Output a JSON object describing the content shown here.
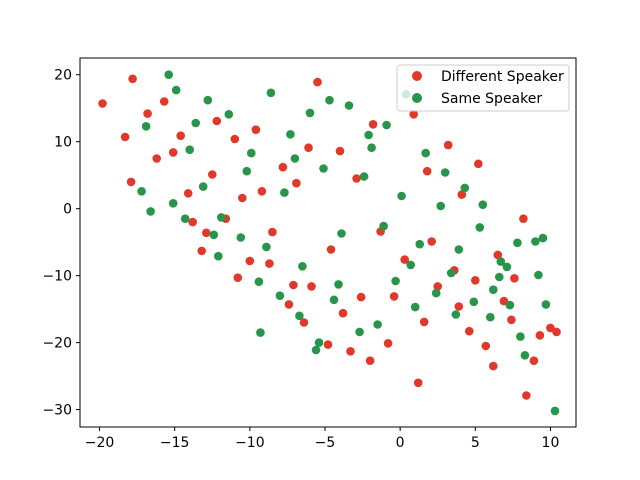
{
  "chart_data": {
    "type": "scatter",
    "title": "",
    "xlabel": "",
    "ylabel": "",
    "xlim": [
      -21.3,
      11.7
    ],
    "ylim": [
      -32.6,
      22.5
    ],
    "x_ticks": [
      -20,
      -15,
      -10,
      -5,
      0,
      5,
      10
    ],
    "y_ticks": [
      -30,
      -20,
      -10,
      0,
      10,
      20
    ],
    "x_tick_labels": [
      "−20",
      "−15",
      "−10",
      "−5",
      "0",
      "5",
      "10"
    ],
    "y_tick_labels": [
      "−30",
      "−20",
      "−10",
      "0",
      "10",
      "20"
    ],
    "legend_position": "top-right",
    "colors": {
      "Different Speaker": "#e0392b",
      "Same Speaker": "#27964a"
    },
    "series": [
      {
        "name": "Different Speaker",
        "points": [
          [
            -19.8,
            15.7
          ],
          [
            -17.8,
            19.4
          ],
          [
            -18.3,
            10.7
          ],
          [
            -17.9,
            4.0
          ],
          [
            -16.8,
            14.2
          ],
          [
            -15.7,
            16.0
          ],
          [
            -16.2,
            7.5
          ],
          [
            -15.1,
            8.4
          ],
          [
            -14.1,
            2.3
          ],
          [
            -13.8,
            -2.0
          ],
          [
            -13.2,
            -6.3
          ],
          [
            -12.5,
            5.1
          ],
          [
            -11.6,
            -1.5
          ],
          [
            -10.8,
            -10.3
          ],
          [
            -10.0,
            -7.8
          ],
          [
            -9.2,
            2.6
          ],
          [
            -8.5,
            -3.5
          ],
          [
            -7.8,
            6.2
          ],
          [
            -7.1,
            -11.4
          ],
          [
            -6.4,
            -17.0
          ],
          [
            -6.9,
            3.8
          ],
          [
            -5.5,
            18.9
          ],
          [
            -4.8,
            -20.3
          ],
          [
            -4.0,
            8.6
          ],
          [
            -3.3,
            -21.3
          ],
          [
            -2.6,
            -13.2
          ],
          [
            -2.0,
            -22.7
          ],
          [
            -1.3,
            -3.4
          ],
          [
            -0.8,
            -20.1
          ],
          [
            0.3,
            -7.6
          ],
          [
            1.2,
            -26.0
          ],
          [
            1.8,
            5.6
          ],
          [
            2.5,
            -11.6
          ],
          [
            3.2,
            9.5
          ],
          [
            3.9,
            -14.6
          ],
          [
            4.6,
            -18.3
          ],
          [
            5.2,
            6.7
          ],
          [
            5.7,
            -20.5
          ],
          [
            6.2,
            -23.5
          ],
          [
            6.9,
            -13.8
          ],
          [
            7.6,
            -10.4
          ],
          [
            8.2,
            -1.5
          ],
          [
            8.4,
            -27.9
          ],
          [
            8.9,
            -22.7
          ],
          [
            9.3,
            -18.9
          ],
          [
            10.0,
            -17.8
          ],
          [
            10.4,
            -18.4
          ],
          [
            -12.2,
            13.1
          ],
          [
            -11.0,
            10.4
          ],
          [
            -9.6,
            11.8
          ],
          [
            -8.7,
            -8.2
          ],
          [
            -6.1,
            9.1
          ],
          [
            -4.6,
            -6.1
          ],
          [
            -3.8,
            -15.6
          ],
          [
            -1.8,
            12.6
          ],
          [
            0.9,
            14.1
          ],
          [
            2.1,
            -4.9
          ],
          [
            3.6,
            -9.2
          ],
          [
            4.1,
            2.1
          ],
          [
            6.5,
            -6.9
          ],
          [
            7.4,
            -16.6
          ],
          [
            -14.6,
            10.9
          ],
          [
            -12.9,
            -3.6
          ],
          [
            -10.5,
            1.6
          ],
          [
            -7.4,
            -14.3
          ],
          [
            -5.9,
            -11.6
          ],
          [
            -2.9,
            4.5
          ],
          [
            -0.4,
            -13.1
          ],
          [
            1.6,
            -16.9
          ],
          [
            5.0,
            -10.7
          ]
        ]
      },
      {
        "name": "Same Speaker",
        "points": [
          [
            -15.4,
            20.0
          ],
          [
            -14.9,
            17.7
          ],
          [
            -16.9,
            12.3
          ],
          [
            -17.2,
            2.6
          ],
          [
            -16.6,
            -0.4
          ],
          [
            -15.1,
            0.8
          ],
          [
            -14.3,
            -1.5
          ],
          [
            -13.6,
            12.8
          ],
          [
            -12.8,
            16.2
          ],
          [
            -12.1,
            -7.1
          ],
          [
            -11.4,
            14.1
          ],
          [
            -10.6,
            -4.3
          ],
          [
            -9.9,
            8.3
          ],
          [
            -9.3,
            -18.5
          ],
          [
            -8.6,
            17.3
          ],
          [
            -8.0,
            -13.0
          ],
          [
            -7.3,
            11.1
          ],
          [
            -6.7,
            -16.0
          ],
          [
            -6.0,
            14.3
          ],
          [
            -5.4,
            -20.0
          ],
          [
            -5.6,
            -21.1
          ],
          [
            -4.7,
            16.2
          ],
          [
            -4.1,
            -11.3
          ],
          [
            -3.4,
            15.4
          ],
          [
            -2.7,
            -18.4
          ],
          [
            -2.1,
            11.0
          ],
          [
            -1.5,
            -17.3
          ],
          [
            -0.9,
            12.5
          ],
          [
            -0.3,
            -10.8
          ],
          [
            0.4,
            17.1
          ],
          [
            1.0,
            -14.7
          ],
          [
            1.7,
            8.3
          ],
          [
            2.4,
            -12.6
          ],
          [
            3.0,
            5.4
          ],
          [
            3.7,
            -15.8
          ],
          [
            4.3,
            3.1
          ],
          [
            4.9,
            -13.9
          ],
          [
            5.5,
            0.6
          ],
          [
            6.0,
            -16.2
          ],
          [
            6.7,
            -7.9
          ],
          [
            7.3,
            -14.4
          ],
          [
            7.8,
            -5.1
          ],
          [
            8.0,
            -19.1
          ],
          [
            8.3,
            -21.9
          ],
          [
            9.0,
            -4.9
          ],
          [
            9.5,
            -4.4
          ],
          [
            9.7,
            -14.3
          ],
          [
            9.2,
            -9.9
          ],
          [
            10.3,
            -30.2
          ],
          [
            -13.1,
            3.3
          ],
          [
            -11.9,
            -1.3
          ],
          [
            -10.2,
            5.6
          ],
          [
            -8.9,
            -5.7
          ],
          [
            -7.7,
            2.4
          ],
          [
            -6.5,
            -8.6
          ],
          [
            -5.1,
            6.0
          ],
          [
            -3.9,
            -3.7
          ],
          [
            -2.4,
            4.8
          ],
          [
            -1.1,
            -2.6
          ],
          [
            0.1,
            1.9
          ],
          [
            1.3,
            -5.3
          ],
          [
            2.7,
            0.4
          ],
          [
            3.9,
            -6.1
          ],
          [
            5.3,
            -2.8
          ],
          [
            6.6,
            -10.2
          ],
          [
            -14.0,
            8.8
          ],
          [
            -12.4,
            -3.9
          ],
          [
            -9.4,
            -10.9
          ],
          [
            -7.0,
            7.5
          ],
          [
            -4.4,
            -13.6
          ],
          [
            -1.9,
            9.1
          ],
          [
            0.7,
            -8.4
          ],
          [
            3.4,
            -9.6
          ],
          [
            6.2,
            -12.1
          ],
          [
            7.1,
            -8.7
          ]
        ]
      }
    ]
  }
}
